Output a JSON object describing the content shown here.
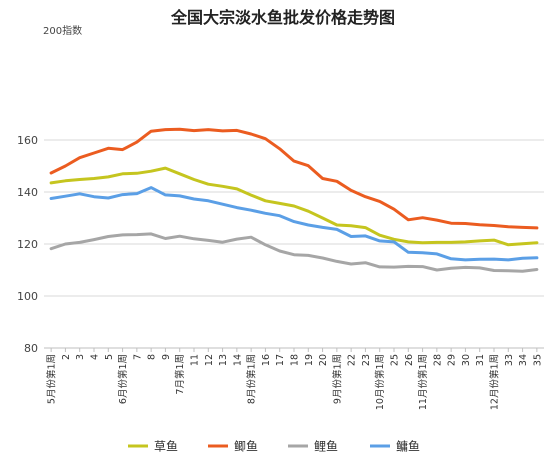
{
  "chart_data": {
    "type": "line",
    "title": "全国大宗淡水鱼批发价格走势图",
    "ylabel": "200指数",
    "xlabel": "",
    "ylim": [
      80,
      200
    ],
    "yticks": [
      80,
      100,
      120,
      140,
      160
    ],
    "grid": "horizontal",
    "legend_position": "bottom",
    "categories": [
      "5月份第1周",
      "2",
      "3",
      "4",
      "5",
      "6月份第1周",
      "7",
      "8",
      "9",
      "7月第1周",
      "11",
      "12",
      "13",
      "14",
      "8月份第1周",
      "16",
      "17",
      "18",
      "19",
      "20",
      "9月份第1周",
      "22",
      "23",
      "10月份第1周",
      "25",
      "26",
      "11月份第1周",
      "28",
      "29",
      "30",
      "31",
      "12月份第1周",
      "33",
      "34",
      "35"
    ],
    "series": [
      {
        "name": "草鱼",
        "color": "#c5c51f",
        "values": [
          143.5,
          144.3,
          144.8,
          145.2,
          145.8,
          147.0,
          147.2,
          148.0,
          149.2,
          147.0,
          144.8,
          143.0,
          142.2,
          141.2,
          138.8,
          136.6,
          135.6,
          134.6,
          132.6,
          130.0,
          127.3,
          127.0,
          126.3,
          123.4,
          121.8,
          120.8,
          120.5,
          120.6,
          120.6,
          120.8,
          121.2,
          121.5,
          119.7,
          120.1,
          120.5
        ]
      },
      {
        "name": "鲫鱼",
        "color": "#eb5c20",
        "values": [
          147.3,
          150.0,
          153.2,
          155.0,
          156.8,
          156.3,
          159.2,
          163.4,
          164.0,
          164.1,
          163.6,
          164.0,
          163.5,
          163.7,
          162.3,
          160.5,
          156.6,
          151.9,
          150.1,
          145.2,
          144.1,
          140.6,
          138.2,
          136.4,
          133.4,
          129.3,
          130.1,
          129.2,
          128.0,
          127.9,
          127.4,
          127.1,
          126.6,
          126.4,
          126.2
        ]
      },
      {
        "name": "鲤鱼",
        "color": "#a6a6a6",
        "values": [
          118.2,
          120.0,
          120.6,
          121.7,
          122.9,
          123.5,
          123.6,
          123.9,
          122.1,
          123.0,
          122.0,
          121.4,
          120.7,
          121.9,
          122.6,
          119.7,
          117.3,
          115.9,
          115.6,
          114.6,
          113.3,
          112.3,
          112.8,
          111.2,
          111.1,
          111.4,
          111.3,
          110.0,
          110.7,
          111.0,
          110.8,
          109.8,
          109.7,
          109.5,
          110.2
        ]
      },
      {
        "name": "鳙鱼",
        "color": "#5b9fe6",
        "values": [
          137.5,
          138.4,
          139.3,
          138.2,
          137.7,
          139.0,
          139.4,
          141.7,
          138.9,
          138.5,
          137.3,
          136.6,
          135.3,
          134.0,
          133.0,
          131.8,
          130.9,
          128.6,
          127.3,
          126.4,
          125.6,
          122.9,
          123.1,
          121.2,
          120.8,
          116.8,
          116.6,
          116.2,
          114.3,
          113.9,
          114.1,
          114.2,
          113.9,
          114.5,
          114.7
        ]
      }
    ]
  }
}
